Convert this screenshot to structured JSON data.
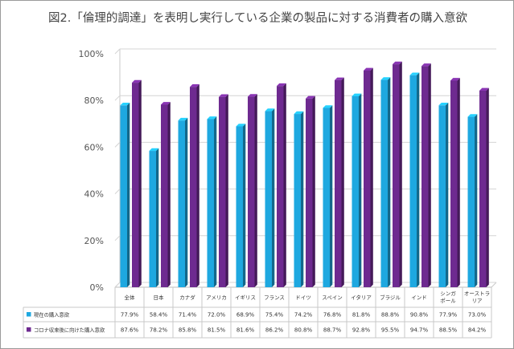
{
  "chart_data": {
    "type": "bar",
    "title": "図2.「倫理的調達」を表明し実行している企業の製品に対する消費者の購入意欲",
    "categories": [
      "全体",
      "日本",
      "カナダ",
      "アメリカ",
      "イギリス",
      "フランス",
      "ドイツ",
      "スペイン",
      "イタリア",
      "ブラジル",
      "インド",
      "シンガポール",
      "オーストラリア"
    ],
    "category_lines": [
      [
        "全体"
      ],
      [
        "日本"
      ],
      [
        "カナダ"
      ],
      [
        "アメリカ"
      ],
      [
        "イギリス"
      ],
      [
        "フランス"
      ],
      [
        "ドイツ"
      ],
      [
        "スペイン"
      ],
      [
        "イタリア"
      ],
      [
        "ブラジル"
      ],
      [
        "インド"
      ],
      [
        "シンガ",
        "ポール"
      ],
      [
        "オーストラ",
        "リア"
      ]
    ],
    "series": [
      {
        "name": "現在の購入意欲",
        "color": "#1EA8E0",
        "values": [
          77.9,
          58.4,
          71.4,
          72.0,
          68.9,
          75.4,
          74.2,
          76.8,
          81.8,
          88.8,
          90.8,
          77.9,
          73.0
        ],
        "labels": [
          "77.9%",
          "58.4%",
          "71.4%",
          "72.0%",
          "68.9%",
          "75.4%",
          "74.2%",
          "76.8%",
          "81.8%",
          "88.8%",
          "90.8%",
          "77.9%",
          "73.0%"
        ]
      },
      {
        "name": "コロナ収束後に向けた購入意欲",
        "color": "#6E2A90",
        "values": [
          87.6,
          78.2,
          85.8,
          81.5,
          81.6,
          86.2,
          80.8,
          88.7,
          92.8,
          95.5,
          94.7,
          88.5,
          84.2
        ],
        "labels": [
          "87.6%",
          "78.2%",
          "85.8%",
          "81.5%",
          "81.6%",
          "86.2%",
          "80.8%",
          "88.7%",
          "92.8%",
          "95.5%",
          "94.7%",
          "88.5%",
          "84.2%"
        ]
      }
    ],
    "ylim": [
      0,
      100
    ],
    "yticks": [
      0,
      20,
      40,
      60,
      80,
      100
    ],
    "ytick_labels": [
      "0%",
      "20%",
      "40%",
      "60%",
      "80%",
      "100%"
    ],
    "grid": true,
    "legend": "data table below chart"
  }
}
